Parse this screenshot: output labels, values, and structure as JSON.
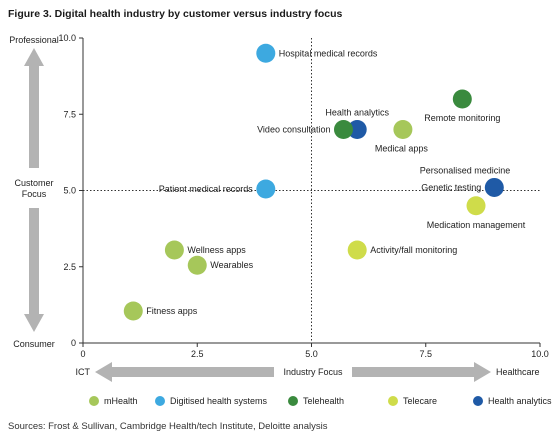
{
  "figure_title": "Figure 3. Digital health industry by customer versus industry focus",
  "source_note": "Sources: Frost & Sullivan, Cambridge Health/tech Institute, Deloitte analysis",
  "arrows": {
    "top_label": "Professional",
    "bottom_label": "Consumer",
    "left_label": "ICT",
    "right_label": "Healthcare"
  },
  "colors": {
    "mHealth": "#a6c75a",
    "Digitised health systems": "#3da9e0",
    "Telehealth": "#3a8a3e",
    "Telecare": "#cfdc4a",
    "Health analytics": "#1f5aa6",
    "arrow": "#b3b3b3",
    "axis": "#333333"
  },
  "chart_data": {
    "type": "scatter",
    "title": "Figure 3. Digital health industry by customer versus industry focus",
    "xlabel": "Industry Focus",
    "ylabel": "Customer Focus",
    "xlim": [
      0,
      10
    ],
    "ylim": [
      0,
      10
    ],
    "xticks": [
      "0",
      "2.5",
      "5.0",
      "7.5",
      "10.0"
    ],
    "yticks": [
      "0",
      "2.5",
      "5.0",
      "7.5",
      "10.0"
    ],
    "xtick_values": [
      0,
      2.5,
      5,
      7.5,
      10
    ],
    "ytick_values": [
      0,
      2.5,
      5,
      7.5,
      10
    ],
    "reference_lines": {
      "x": 5,
      "y": 5
    },
    "grid": false,
    "legend_position": "bottom",
    "points": [
      {
        "label": "Hospital medical records",
        "x": 4.0,
        "y": 9.5,
        "series": "Digitised health systems",
        "label_pos": "right"
      },
      {
        "label": "Health analytics",
        "x": 6.0,
        "y": 7.0,
        "series": "Health analytics",
        "label_pos": "above"
      },
      {
        "label": "Video consultation",
        "x": 5.7,
        "y": 7.0,
        "series": "Telehealth",
        "label_pos": "left"
      },
      {
        "label": "Remote monitoring",
        "x": 8.3,
        "y": 8.0,
        "series": "Telehealth",
        "label_pos": "below-right"
      },
      {
        "label": "Medical apps",
        "x": 7.0,
        "y": 7.0,
        "series": "mHealth",
        "label_pos": "below-left"
      },
      {
        "label": "Personalised medicine",
        "x": 9.0,
        "y": 5.1,
        "series": "Health analytics",
        "label_pos": "above-left"
      },
      {
        "label": "Genetic testing",
        "x": 9.0,
        "y": 5.1,
        "series": "Health analytics",
        "label_pos": "left"
      },
      {
        "label": "Patient medical records",
        "x": 4.0,
        "y": 5.05,
        "series": "Digitised health systems",
        "label_pos": "left"
      },
      {
        "label": "Medication management",
        "x": 8.6,
        "y": 4.5,
        "series": "Telecare",
        "label_pos": "below"
      },
      {
        "label": "Wellness apps",
        "x": 2.0,
        "y": 3.05,
        "series": "mHealth",
        "label_pos": "right"
      },
      {
        "label": "Wearables",
        "x": 2.5,
        "y": 2.55,
        "series": "mHealth",
        "label_pos": "right"
      },
      {
        "label": "Activity/fall monitoring",
        "x": 6.0,
        "y": 3.05,
        "series": "Telecare",
        "label_pos": "right"
      },
      {
        "label": "Fitness apps",
        "x": 1.1,
        "y": 1.05,
        "series": "mHealth",
        "label_pos": "right"
      }
    ],
    "legend": [
      "mHealth",
      "Digitised health systems",
      "Telehealth",
      "Telecare",
      "Health analytics"
    ]
  }
}
